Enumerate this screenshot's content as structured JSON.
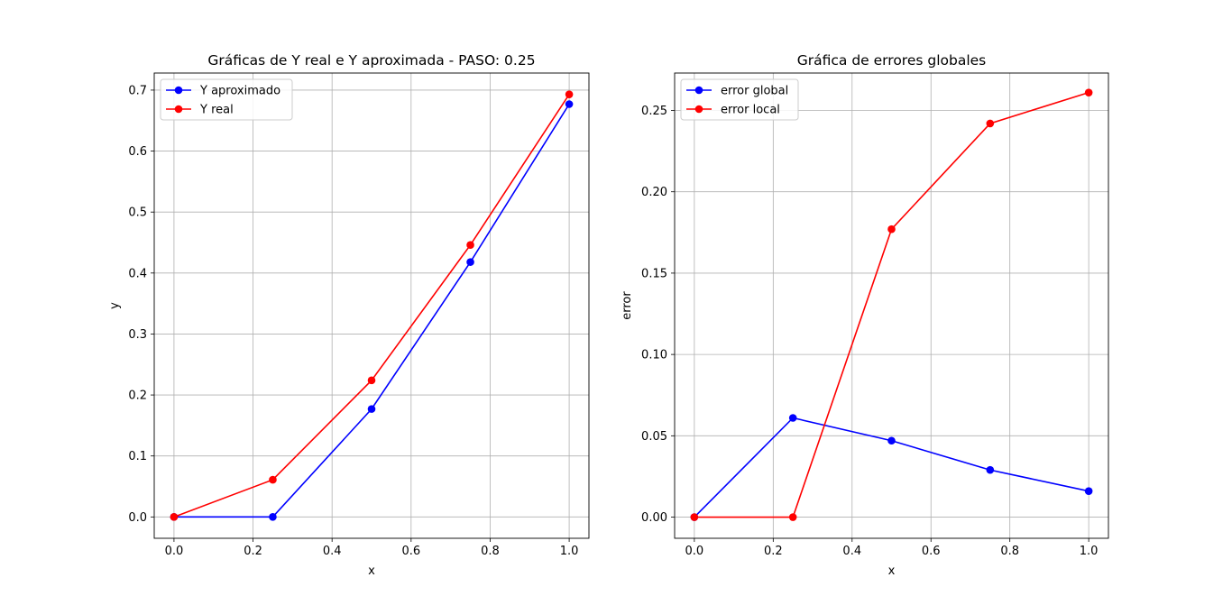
{
  "chart_data": [
    {
      "type": "line",
      "title": "Gráficas de Y real e Y aproximada - PASO: 0.25",
      "xlabel": "x",
      "ylabel": "y",
      "xlim": [
        -0.05,
        1.05
      ],
      "ylim": [
        -0.035,
        0.728
      ],
      "xticks": [
        0.0,
        0.2,
        0.4,
        0.6,
        0.8,
        1.0
      ],
      "xtick_labels": [
        "0.0",
        "0.2",
        "0.4",
        "0.6",
        "0.8",
        "1.0"
      ],
      "yticks": [
        0.0,
        0.1,
        0.2,
        0.3,
        0.4,
        0.5,
        0.6,
        0.7
      ],
      "ytick_labels": [
        "0.0",
        "0.1",
        "0.2",
        "0.3",
        "0.4",
        "0.5",
        "0.6",
        "0.7"
      ],
      "grid": true,
      "legend": "top-left",
      "x": [
        0.0,
        0.25,
        0.5,
        0.75,
        1.0
      ],
      "series": [
        {
          "name": "Y aproximado",
          "color": "#0000ff",
          "marker": "circle",
          "values": [
            0.0,
            0.0,
            0.177,
            0.418,
            0.677
          ]
        },
        {
          "name": "Y real",
          "color": "#ff0000",
          "marker": "circle",
          "values": [
            0.0,
            0.061,
            0.224,
            0.446,
            0.693
          ]
        }
      ]
    },
    {
      "type": "line",
      "title": "Gráfica de errores globales",
      "xlabel": "x",
      "ylabel": "error",
      "xlim": [
        -0.05,
        1.05
      ],
      "ylim": [
        -0.013,
        0.273
      ],
      "xticks": [
        0.0,
        0.2,
        0.4,
        0.6,
        0.8,
        1.0
      ],
      "xtick_labels": [
        "0.0",
        "0.2",
        "0.4",
        "0.6",
        "0.8",
        "1.0"
      ],
      "yticks": [
        0.0,
        0.05,
        0.1,
        0.15,
        0.2,
        0.25
      ],
      "ytick_labels": [
        "0.00",
        "0.05",
        "0.10",
        "0.15",
        "0.20",
        "0.25"
      ],
      "grid": true,
      "legend": "top-left",
      "x": [
        0.0,
        0.25,
        0.5,
        0.75,
        1.0
      ],
      "series": [
        {
          "name": "error global",
          "color": "#0000ff",
          "marker": "circle",
          "values": [
            0.0,
            0.061,
            0.047,
            0.029,
            0.016
          ]
        },
        {
          "name": "error local",
          "color": "#ff0000",
          "marker": "circle",
          "values": [
            0.0,
            0.0,
            0.177,
            0.242,
            0.261
          ]
        }
      ]
    }
  ]
}
